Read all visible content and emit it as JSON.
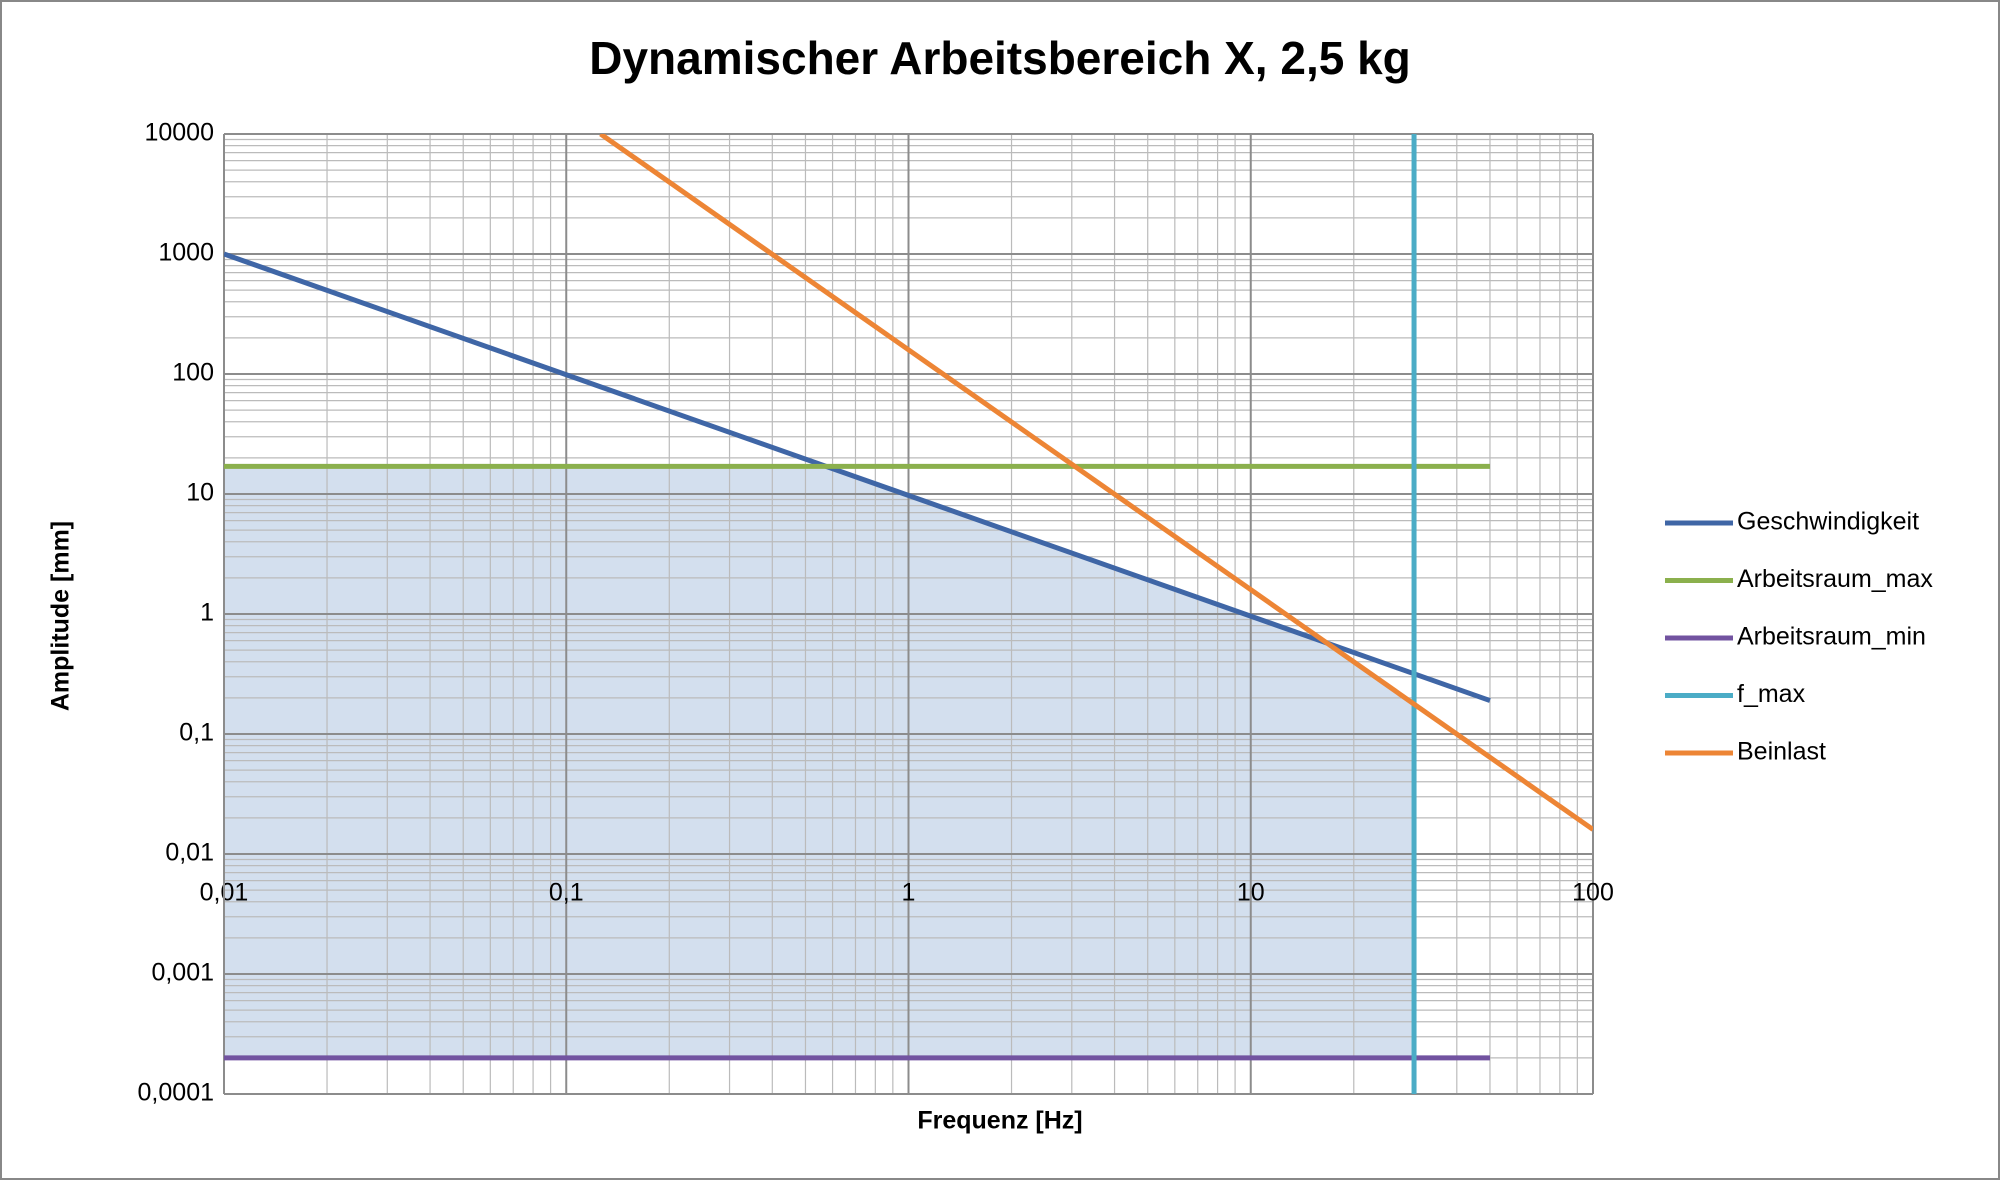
{
  "chart_data": {
    "type": "line",
    "title": "Dynamischer Arbeitsbereich X, 2,5 kg",
    "x_label": "Frequenz [Hz]",
    "y_label": "Amplitude [mm]",
    "x_log": true,
    "y_log": true,
    "grid": true,
    "minor_grid": true,
    "legend": "right",
    "xlim": [
      0.01,
      100
    ],
    "ylim": [
      0.0001,
      10000
    ],
    "xticks": [
      {
        "value": 0.01,
        "label": "0,01"
      },
      {
        "value": 0.1,
        "label": "0,1"
      },
      1,
      10,
      100
    ],
    "yticks": [
      {
        "value": 0.0001,
        "label": "0,0001"
      },
      {
        "value": 0.001,
        "label": "0,001"
      },
      {
        "value": 0.01,
        "label": "0,01"
      },
      {
        "value": 0.1,
        "label": "0,1"
      },
      1,
      10,
      100,
      1000,
      10000
    ],
    "series": [
      {
        "name": "Geschwindigkeit",
        "color": "#3f66a6",
        "x": [
          0.01,
          50
        ],
        "values": [
          1000,
          0.19
        ]
      },
      {
        "name": "Arbeitsraum_max",
        "color": "#8bb04d",
        "x": [
          0.01,
          50
        ],
        "values": [
          17,
          17
        ]
      },
      {
        "name": "Arbeitsraum_min",
        "color": "#7253a0",
        "x": [
          0.01,
          50
        ],
        "values": [
          0.0002,
          0.0002
        ]
      },
      {
        "name": "f_max",
        "color": "#4bacc6",
        "x": [
          30,
          30
        ],
        "values": [
          0.0001,
          10000
        ]
      },
      {
        "name": "Beinlast",
        "color": "#ed8535",
        "x": [
          0.126,
          100
        ],
        "values": [
          10000,
          0.016
        ]
      }
    ]
  }
}
